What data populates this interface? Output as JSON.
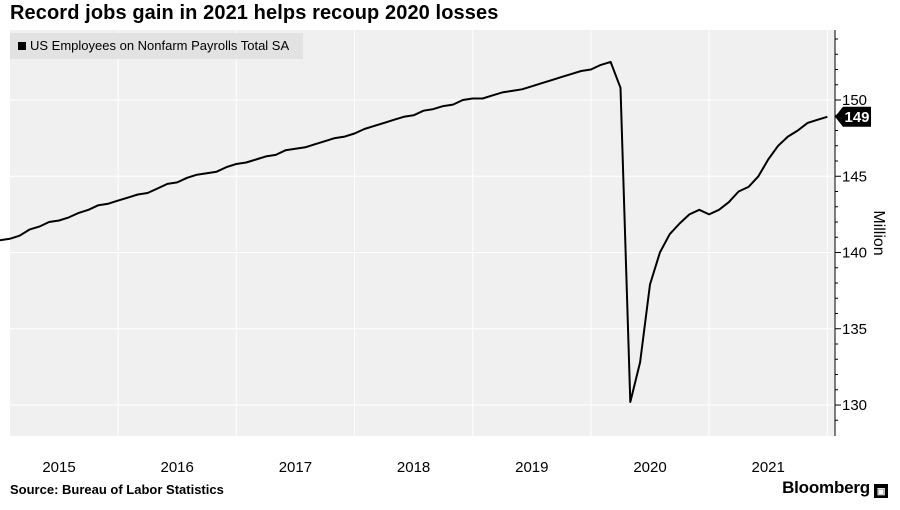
{
  "chart_data": {
    "type": "line",
    "title": "Record jobs gain in 2021 helps recoup 2020 losses",
    "ylabel": "Million",
    "ylim": [
      128,
      155
    ],
    "y_ticks": [
      130,
      135,
      140,
      145,
      150
    ],
    "x_ticks": [
      "2015",
      "2016",
      "2017",
      "2018",
      "2019",
      "2020",
      "2021"
    ],
    "last_value_label": "149",
    "legend": "top-left",
    "grid": true,
    "series": [
      {
        "name": "US Employees on Nonfarm Payrolls Total SA",
        "color": "#000000",
        "x": [
          "2014-07",
          "2014-08",
          "2014-09",
          "2014-10",
          "2014-11",
          "2014-12",
          "2015-01",
          "2015-02",
          "2015-03",
          "2015-04",
          "2015-05",
          "2015-06",
          "2015-07",
          "2015-08",
          "2015-09",
          "2015-10",
          "2015-11",
          "2015-12",
          "2016-01",
          "2016-02",
          "2016-03",
          "2016-04",
          "2016-05",
          "2016-06",
          "2016-07",
          "2016-08",
          "2016-09",
          "2016-10",
          "2016-11",
          "2016-12",
          "2017-01",
          "2017-02",
          "2017-03",
          "2017-04",
          "2017-05",
          "2017-06",
          "2017-07",
          "2017-08",
          "2017-09",
          "2017-10",
          "2017-11",
          "2017-12",
          "2018-01",
          "2018-02",
          "2018-03",
          "2018-04",
          "2018-05",
          "2018-06",
          "2018-07",
          "2018-08",
          "2018-09",
          "2018-10",
          "2018-11",
          "2018-12",
          "2019-01",
          "2019-02",
          "2019-03",
          "2019-04",
          "2019-05",
          "2019-06",
          "2019-07",
          "2019-08",
          "2019-09",
          "2019-10",
          "2019-11",
          "2019-12",
          "2020-01",
          "2020-02",
          "2020-03",
          "2020-04",
          "2020-05",
          "2020-06",
          "2020-07",
          "2020-08",
          "2020-09",
          "2020-10",
          "2020-11",
          "2020-12",
          "2021-01",
          "2021-02",
          "2021-03",
          "2021-04",
          "2021-05",
          "2021-06",
          "2021-07"
        ],
        "values": [
          140.8,
          140.9,
          141.1,
          141.5,
          141.7,
          142.0,
          142.1,
          142.3,
          142.6,
          142.8,
          143.1,
          143.2,
          143.4,
          143.6,
          143.8,
          143.9,
          144.2,
          144.5,
          144.6,
          144.9,
          145.1,
          145.2,
          145.3,
          145.6,
          145.8,
          145.9,
          146.1,
          146.3,
          146.4,
          146.7,
          146.8,
          146.9,
          147.1,
          147.3,
          147.5,
          147.6,
          147.8,
          148.1,
          148.3,
          148.5,
          148.7,
          148.9,
          149.0,
          149.3,
          149.4,
          149.6,
          149.7,
          150.0,
          150.1,
          150.1,
          150.3,
          150.5,
          150.6,
          150.7,
          150.9,
          151.1,
          151.3,
          151.5,
          151.7,
          151.9,
          152.0,
          152.3,
          152.5,
          150.8,
          130.2,
          132.8,
          137.9,
          140.0,
          141.2,
          141.9,
          142.5,
          142.8,
          142.5,
          142.8,
          143.3,
          144.0,
          144.3,
          145.0,
          146.1,
          147.0,
          147.6,
          148.0,
          148.5,
          148.7,
          148.9
        ]
      }
    ]
  },
  "legend_label": "US Employees on Nonfarm Payrolls Total SA",
  "source_text": "Source: Bureau of Labor Statistics",
  "brand_name": "Bloomberg",
  "brand_icon_glyph": "▣",
  "colors": {
    "plot_bg": "#f0f0f0",
    "grid": "#ffffff",
    "line": "#000000"
  }
}
